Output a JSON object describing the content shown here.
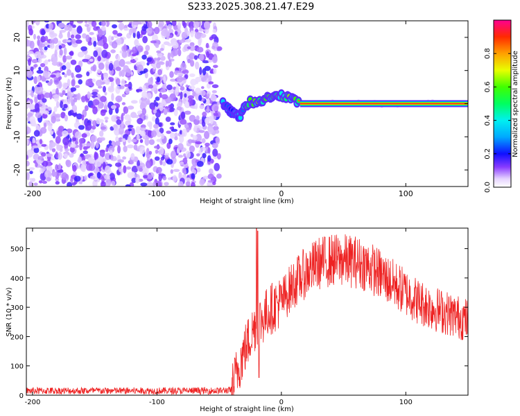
{
  "title": "S233.2025.308.21.47.E29",
  "chart_data": [
    {
      "type": "heatmap",
      "xlabel": "Height of straight line (km)",
      "ylabel": "Frequency (Hz)",
      "xlim": [
        -205,
        150
      ],
      "ylim": [
        -25,
        25
      ],
      "xticks": [
        -200,
        -100,
        0,
        100
      ],
      "yticks": [
        -20,
        -10,
        0,
        10,
        20
      ],
      "noise_region_x": [
        -205,
        -50
      ],
      "transition_x": [
        -50,
        15
      ],
      "carrier_region_x": [
        15,
        150
      ],
      "carrier_frequency": 0,
      "signal_trace": [
        {
          "x": -47,
          "y": 0
        },
        {
          "x": -43,
          "y": -1.5
        },
        {
          "x": -40,
          "y": -2.5
        },
        {
          "x": -36,
          "y": -3.5
        },
        {
          "x": -33,
          "y": -3.5
        },
        {
          "x": -30,
          "y": -1
        },
        {
          "x": -25,
          "y": 0.5
        },
        {
          "x": -20,
          "y": 0.5
        },
        {
          "x": -15,
          "y": 1
        },
        {
          "x": -10,
          "y": 2
        },
        {
          "x": -5,
          "y": 2.5
        },
        {
          "x": 0,
          "y": 2.5
        },
        {
          "x": 5,
          "y": 2
        },
        {
          "x": 10,
          "y": 1
        },
        {
          "x": 15,
          "y": 0.5
        }
      ],
      "colorbar": {
        "label": "Normalized spectral amplitude",
        "range": [
          0,
          1
        ],
        "ticks": [
          "0.0",
          "0.2",
          "0.4",
          "0.6",
          "0.8"
        ],
        "tick_values": [
          0,
          0.2,
          0.4,
          0.6,
          0.8
        ]
      }
    },
    {
      "type": "line",
      "xlabel": "Height of straight line (km)",
      "ylabel": "SNR (10 * v/v)",
      "xlim": [
        -205,
        150
      ],
      "ylim": [
        0,
        570
      ],
      "xticks": [
        -200,
        -100,
        0,
        100
      ],
      "yticks": [
        0,
        100,
        200,
        300,
        400,
        500
      ],
      "color": "#ee2222",
      "envelope": [
        {
          "x": -205,
          "y": 15
        },
        {
          "x": -150,
          "y": 15
        },
        {
          "x": -100,
          "y": 15
        },
        {
          "x": -50,
          "y": 15
        },
        {
          "x": -40,
          "y": 18
        },
        {
          "x": -35,
          "y": 90
        },
        {
          "x": -30,
          "y": 150
        },
        {
          "x": -25,
          "y": 200
        },
        {
          "x": -20,
          "y": 250
        },
        {
          "x": -15,
          "y": 260
        },
        {
          "x": -10,
          "y": 290
        },
        {
          "x": 0,
          "y": 320
        },
        {
          "x": 10,
          "y": 380
        },
        {
          "x": 20,
          "y": 420
        },
        {
          "x": 30,
          "y": 450
        },
        {
          "x": 40,
          "y": 460
        },
        {
          "x": 50,
          "y": 460
        },
        {
          "x": 60,
          "y": 455
        },
        {
          "x": 70,
          "y": 440
        },
        {
          "x": 80,
          "y": 410
        },
        {
          "x": 90,
          "y": 380
        },
        {
          "x": 100,
          "y": 350
        },
        {
          "x": 110,
          "y": 320
        },
        {
          "x": 120,
          "y": 300
        },
        {
          "x": 130,
          "y": 285
        },
        {
          "x": 140,
          "y": 270
        },
        {
          "x": 150,
          "y": 255
        }
      ],
      "noise_amplitude": 12,
      "spikes": [
        {
          "x": -20,
          "y": 570
        },
        {
          "x": -19,
          "y": 560
        },
        {
          "x": -18,
          "y": 60
        }
      ]
    }
  ]
}
